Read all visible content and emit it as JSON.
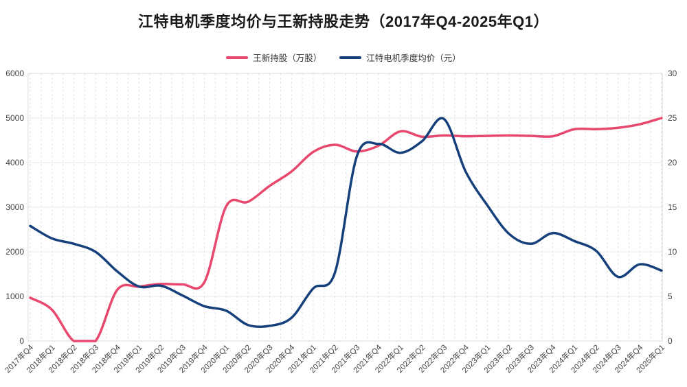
{
  "chart_data": {
    "type": "line",
    "title": "江特电机季度均价与王新持股走势（2017年Q4-2025年Q1）",
    "smooth": true,
    "grid": true,
    "legend_position": "top",
    "categories": [
      "2017年Q4",
      "2018年Q1",
      "2018年Q2",
      "2018年Q3",
      "2018年Q4",
      "2019年Q1",
      "2019年Q2",
      "2019年Q3",
      "2019年Q4",
      "2020年Q1",
      "2020年Q2",
      "2020年Q3",
      "2020年Q4",
      "2021年Q1",
      "2021年Q2",
      "2021年Q3",
      "2021年Q4",
      "2022年Q1",
      "2022年Q2",
      "2022年Q3",
      "2022年Q4",
      "2023年Q1",
      "2023年Q2",
      "2023年Q3",
      "2023年Q4",
      "2024年Q1",
      "2024年Q2",
      "2024年Q3",
      "2024年Q4",
      "2025年Q1"
    ],
    "series": [
      {
        "name": "王新持股（万股）",
        "color": "#e8486e",
        "axis": "left",
        "values": [
          970,
          700,
          0,
          0,
          1150,
          1220,
          1280,
          1270,
          1320,
          3020,
          3120,
          3480,
          3800,
          4240,
          4400,
          4250,
          4380,
          4700,
          4580,
          4610,
          4590,
          4600,
          4610,
          4600,
          4590,
          4750,
          4750,
          4780,
          4860,
          5000
        ]
      },
      {
        "name": "江特电机季度均价（元）",
        "color": "#16407c",
        "axis": "right",
        "values": [
          12.9,
          11.5,
          10.9,
          10.0,
          7.8,
          6.1,
          6.2,
          5.1,
          3.9,
          3.4,
          1.8,
          1.7,
          2.6,
          5.9,
          7.7,
          20.7,
          22.1,
          21.1,
          22.4,
          24.9,
          19.0,
          15.2,
          12.0,
          10.9,
          12.1,
          11.2,
          10.1,
          7.2,
          8.6,
          7.9
        ]
      }
    ],
    "left_axis": {
      "ticks": [
        "0",
        "1000",
        "2000",
        "3000",
        "4000",
        "5000",
        "6000"
      ],
      "min": 0,
      "max": 6000
    },
    "right_axis": {
      "ticks": [
        "0",
        "5",
        "10",
        "15",
        "20",
        "25",
        "30"
      ],
      "min": 0,
      "max": 30
    }
  },
  "legend": [
    {
      "label": "王新持股（万股）",
      "color": "#e8486e"
    },
    {
      "label": "江特电机季度均价（元）",
      "color": "#16407c"
    }
  ],
  "style_colors": {
    "title": "#1a1a1a",
    "axis_label": "#444444",
    "grid_line": "#e9e9e9",
    "grid_dash": "#e2e2e2",
    "border": "#d9d9d9"
  }
}
